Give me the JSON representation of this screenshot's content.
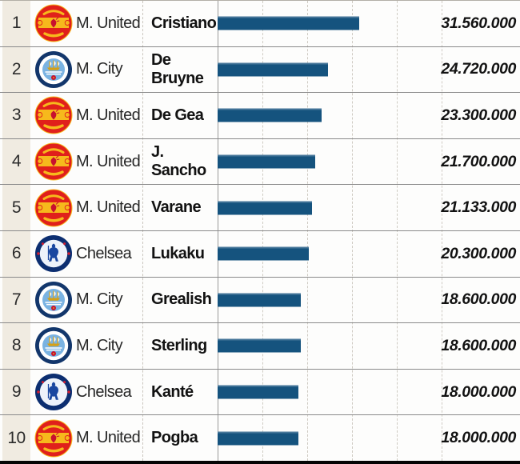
{
  "chart_data": {
    "type": "bar",
    "orientation": "horizontal",
    "ylabel": "",
    "xlabel": "",
    "axis": {
      "min": 0,
      "max": 67500000,
      "gridline_values": [
        10000000,
        20000000,
        30000000,
        40000000,
        50000000
      ],
      "grid": "dashed-vertical",
      "legend": "none"
    },
    "rows": [
      {
        "rank": "1",
        "club": "M. United",
        "club_key": "man-united",
        "crest_icon": "man-united-crest-icon",
        "player": "Cristiano",
        "value": 31560000,
        "value_label": "31.560.000"
      },
      {
        "rank": "2",
        "club": "M. City",
        "club_key": "man-city",
        "crest_icon": "man-city-crest-icon",
        "player": "De Bruyne",
        "value": 24720000,
        "value_label": "24.720.000"
      },
      {
        "rank": "3",
        "club": "M. United",
        "club_key": "man-united",
        "crest_icon": "man-united-crest-icon",
        "player": "De Gea",
        "value": 23300000,
        "value_label": "23.300.000"
      },
      {
        "rank": "4",
        "club": "M. United",
        "club_key": "man-united",
        "crest_icon": "man-united-crest-icon",
        "player": "J. Sancho",
        "value": 21700000,
        "value_label": "21.700.000"
      },
      {
        "rank": "5",
        "club": "M. United",
        "club_key": "man-united",
        "crest_icon": "man-united-crest-icon",
        "player": "Varane",
        "value": 21133000,
        "value_label": "21.133.000"
      },
      {
        "rank": "6",
        "club": "Chelsea",
        "club_key": "chelsea",
        "crest_icon": "chelsea-crest-icon",
        "player": "Lukaku",
        "value": 20300000,
        "value_label": "20.300.000"
      },
      {
        "rank": "7",
        "club": "M. City",
        "club_key": "man-city",
        "crest_icon": "man-city-crest-icon",
        "player": "Grealish",
        "value": 18600000,
        "value_label": "18.600.000"
      },
      {
        "rank": "8",
        "club": "M. City",
        "club_key": "man-city",
        "crest_icon": "man-city-crest-icon",
        "player": "Sterling",
        "value": 18600000,
        "value_label": "18.600.000"
      },
      {
        "rank": "9",
        "club": "Chelsea",
        "club_key": "chelsea",
        "crest_icon": "chelsea-crest-icon",
        "player": "Kanté",
        "value": 18000000,
        "value_label": "18.000.000"
      },
      {
        "rank": "10",
        "club": "M. United",
        "club_key": "man-united",
        "crest_icon": "man-united-crest-icon",
        "player": "Pogba",
        "value": 18000000,
        "value_label": "18.000.000"
      }
    ]
  },
  "colors": {
    "bar": "#15537e",
    "bar_top_edge": "#47779a",
    "rank_column_bg": "#f0ebe1",
    "row_separator": "#8a8a8a",
    "gridline": "#cfcbc3",
    "axis_line": "#9a9a9a",
    "column_divider": "#c9c5bd",
    "value_text": "#121212",
    "bottom_bar": "#050505"
  }
}
